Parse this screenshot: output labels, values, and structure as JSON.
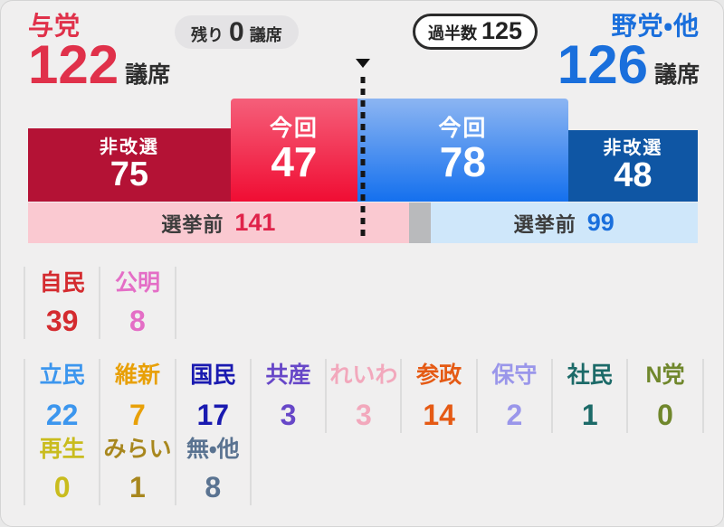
{
  "ui": {
    "seat_unit": "議席",
    "left_bloc": {
      "name": "与党"
    },
    "right_bloc": {
      "name": "野党・他"
    },
    "remaining": {
      "prefix": "残り",
      "suffix": "議席"
    },
    "majority_label": "過半数",
    "bar": {
      "now_label": "今回",
      "non_contested_label": "非改選",
      "pre_label": "選挙前"
    },
    "party_rows": [
      [
        {
          "name": "自民",
          "seats": 39,
          "color": "#d42b2f"
        },
        {
          "name": "公明",
          "seats": 8,
          "color": "#e46ec6"
        }
      ],
      [
        {
          "name": "立民",
          "seats": 22,
          "color": "#3c96ee"
        },
        {
          "name": "維新",
          "seats": 7,
          "color": "#e8a008"
        },
        {
          "name": "国民",
          "seats": 17,
          "color": "#1a1ab0"
        },
        {
          "name": "共産",
          "seats": 3,
          "color": "#6747c8"
        },
        {
          "name": "れいわ",
          "seats": 3,
          "color": "#f2a8bc"
        },
        {
          "name": "参政",
          "seats": 14,
          "color": "#e55a14"
        },
        {
          "name": "保守",
          "seats": 2,
          "color": "#9a96ea"
        },
        {
          "name": "社民",
          "seats": 1,
          "color": "#1c6a68"
        },
        {
          "name": "N党",
          "seats": 0,
          "color": "#70872c"
        }
      ],
      [
        {
          "name": "再生",
          "seats": 0,
          "color": "#c9bc1e"
        },
        {
          "name": "みらい",
          "seats": 1,
          "color": "#a8871e"
        },
        {
          "name": "無・他",
          "seats": 8,
          "color": "#5a7391"
        }
      ]
    ]
  },
  "colors": {
    "ruling_accent": "#e0314a",
    "opposition_accent": "#1a6fdc",
    "ruling_non_contested_bg": "#b41235",
    "ruling_now_gradient_top": "#f55f7a",
    "ruling_now_gradient_bottom": "#f00d33",
    "opposition_now_gradient_top": "#8cb5f2",
    "opposition_now_gradient_bottom": "#1470ee",
    "opposition_non_contested_bg": "#0f56a4",
    "pre_ruling_bg": "#fac9d1",
    "pre_gap_bg": "#b9babc",
    "pre_opposition_bg": "#cfe7fa"
  },
  "chart_data": {
    "type": "bar",
    "total_seats": 248,
    "majority": 125,
    "remaining": 0,
    "blocs": [
      {
        "name": "与党",
        "total": 122,
        "now": 47,
        "non_contested": 75,
        "pre_election": 141
      },
      {
        "name": "野党・他",
        "total": 126,
        "now": 78,
        "non_contested": 48,
        "pre_election": 99
      }
    ],
    "parties": [
      {
        "name": "自民",
        "seats": 39
      },
      {
        "name": "公明",
        "seats": 8
      },
      {
        "name": "立民",
        "seats": 22
      },
      {
        "name": "維新",
        "seats": 7
      },
      {
        "name": "国民",
        "seats": 17
      },
      {
        "name": "共産",
        "seats": 3
      },
      {
        "name": "れいわ",
        "seats": 3
      },
      {
        "name": "参政",
        "seats": 14
      },
      {
        "name": "保守",
        "seats": 2
      },
      {
        "name": "社民",
        "seats": 1
      },
      {
        "name": "N党",
        "seats": 0
      },
      {
        "name": "再生",
        "seats": 0
      },
      {
        "name": "みらい",
        "seats": 1
      },
      {
        "name": "無・他",
        "seats": 8
      }
    ]
  }
}
